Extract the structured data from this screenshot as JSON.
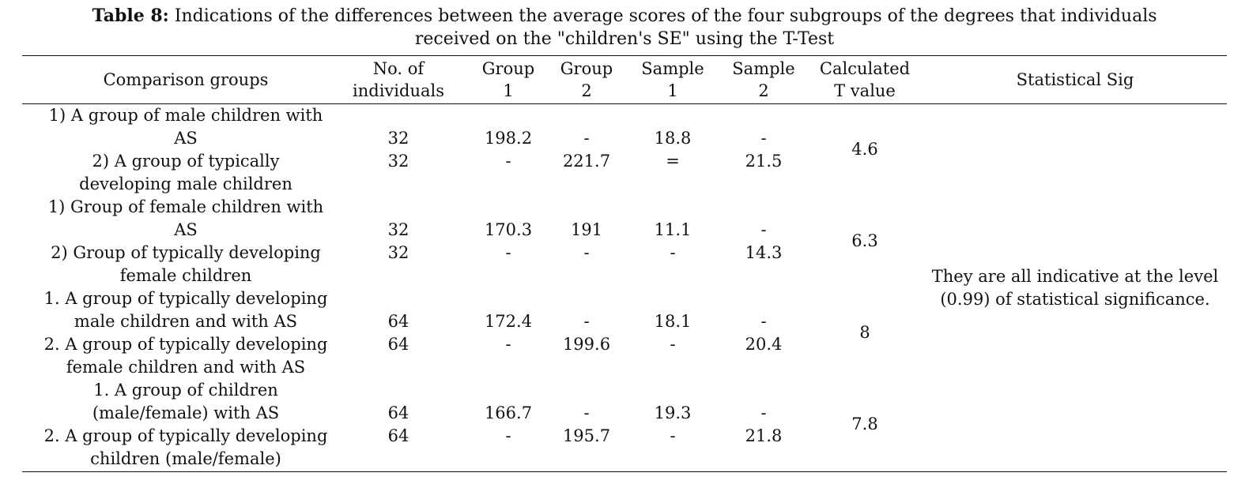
{
  "table": {
    "caption_label": "Table 8:",
    "caption_text_line1": " Indications of the differences between the average scores of the four subgroups of the degrees that individuals",
    "caption_text_line2": "received on the \"children's SE\" using the T-Test",
    "headers": {
      "comparison": "Comparison groups",
      "individuals_1": "No. of",
      "individuals_2": "individuals",
      "group1_1": "Group",
      "group1_2": "1",
      "group2_1": "Group",
      "group2_2": "2",
      "sample1_1": "Sample",
      "sample1_2": "1",
      "sample2_1": "Sample",
      "sample2_2": "2",
      "tvalue_1": "Calculated",
      "tvalue_2": "T value",
      "sig": "Statistical Sig"
    },
    "sig_text_1": "They are all indicative at the level",
    "sig_text_2": "(0.99) of statistical significance.",
    "blocks": [
      {
        "c1": "1) A group of male children with",
        "c2": "AS",
        "c3": "2) A group of typically",
        "c4": "developing male children",
        "n_a": "32",
        "n_b": "32",
        "g1_a": "198.2",
        "g1_b": "-",
        "g2_a": "-",
        "g2_b": "221.7",
        "s1_a": "18.8",
        "s1_b": "=",
        "s2_a": "-",
        "s2_b": "21.5",
        "t": "4.6"
      },
      {
        "c1": "1) Group of female children with",
        "c2": "AS",
        "c3": "2) Group of typically developing",
        "c4": "female children",
        "n_a": "32",
        "n_b": "32",
        "g1_a": "170.3",
        "g1_b": "-",
        "g2_a": "191",
        "g2_b": "-",
        "s1_a": "11.1",
        "s1_b": "-",
        "s2_a": "-",
        "s2_b": "14.3",
        "t": "6.3"
      },
      {
        "c1": "1. A group of typically developing",
        "c2": "male children and with AS",
        "c3": "2. A group of typically developing",
        "c4": "female children and with AS",
        "n_a": "64",
        "n_b": "64",
        "g1_a": "172.4",
        "g1_b": "-",
        "g2_a": "-",
        "g2_b": "199.6",
        "s1_a": "18.1",
        "s1_b": "-",
        "s2_a": "-",
        "s2_b": "20.4",
        "t": "8"
      },
      {
        "c1": "1. A group of children",
        "c2": "(male/female) with AS",
        "c3": "2. A group of typically developing",
        "c4": "children (male/female)",
        "n_a": "64",
        "n_b": "64",
        "g1_a": "166.7",
        "g1_b": "-",
        "g2_a": "-",
        "g2_b": "195.7",
        "s1_a": "19.3",
        "s1_b": "-",
        "s2_a": "-",
        "s2_b": "21.8",
        "t": "7.8"
      }
    ]
  }
}
